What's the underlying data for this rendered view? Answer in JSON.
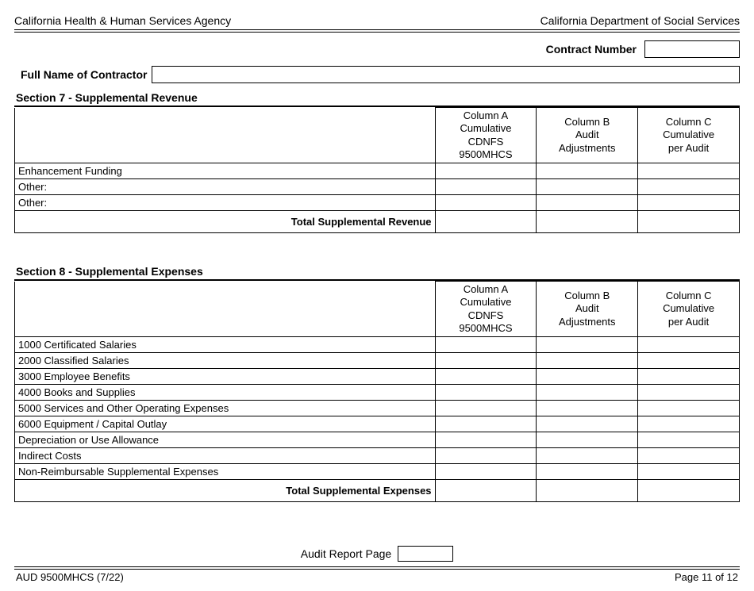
{
  "header": {
    "left": "California Health & Human Services Agency",
    "right": "California Department of Social Services"
  },
  "contract": {
    "label": "Contract Number",
    "value": ""
  },
  "contractor": {
    "label": "Full Name of Contractor",
    "value": ""
  },
  "section7": {
    "title": "Section 7 - Supplemental Revenue",
    "columns": {
      "a": [
        "Column A",
        "Cumulative",
        "CDNFS",
        "9500MHCS"
      ],
      "b": [
        "Column B",
        "Audit",
        "Adjustments"
      ],
      "c": [
        "Column C",
        "Cumulative",
        "per Audit"
      ]
    },
    "rows": [
      {
        "label": "Enhancement Funding",
        "a": "",
        "b": "",
        "c": ""
      },
      {
        "label": "Other:",
        "a": "",
        "b": "",
        "c": ""
      },
      {
        "label": "Other:",
        "a": "",
        "b": "",
        "c": ""
      }
    ],
    "total": {
      "label": "Total Supplemental Revenue",
      "a": "",
      "b": "",
      "c": ""
    }
  },
  "section8": {
    "title": "Section 8 - Supplemental Expenses",
    "columns": {
      "a": [
        "Column A",
        "Cumulative",
        "CDNFS",
        "9500MHCS"
      ],
      "b": [
        "Column B",
        "Audit",
        "Adjustments"
      ],
      "c": [
        "Column C",
        "Cumulative",
        "per Audit"
      ]
    },
    "rows": [
      {
        "label": "1000 Certificated Salaries",
        "a": "",
        "b": "",
        "c": ""
      },
      {
        "label": "2000 Classified Salaries",
        "a": "",
        "b": "",
        "c": ""
      },
      {
        "label": "3000 Employee Benefits",
        "a": "",
        "b": "",
        "c": ""
      },
      {
        "label": "4000 Books and Supplies",
        "a": "",
        "b": "",
        "c": ""
      },
      {
        "label": "5000 Services and Other Operating Expenses",
        "a": "",
        "b": "",
        "c": ""
      },
      {
        "label": "6000 Equipment / Capital Outlay",
        "a": "",
        "b": "",
        "c": ""
      },
      {
        "label": "Depreciation or Use Allowance",
        "a": "",
        "b": "",
        "c": ""
      },
      {
        "label": "Indirect Costs",
        "a": "",
        "b": "",
        "c": ""
      },
      {
        "label": "Non-Reimbursable Supplemental Expenses",
        "a": "",
        "b": "",
        "c": ""
      }
    ],
    "total": {
      "label": "Total Supplemental Expenses",
      "a": "",
      "b": "",
      "c": ""
    }
  },
  "auditPage": {
    "label": "Audit Report Page",
    "value": ""
  },
  "footer": {
    "left": "AUD 9500MHCS (7/22)",
    "right": "Page 11 of 12"
  }
}
